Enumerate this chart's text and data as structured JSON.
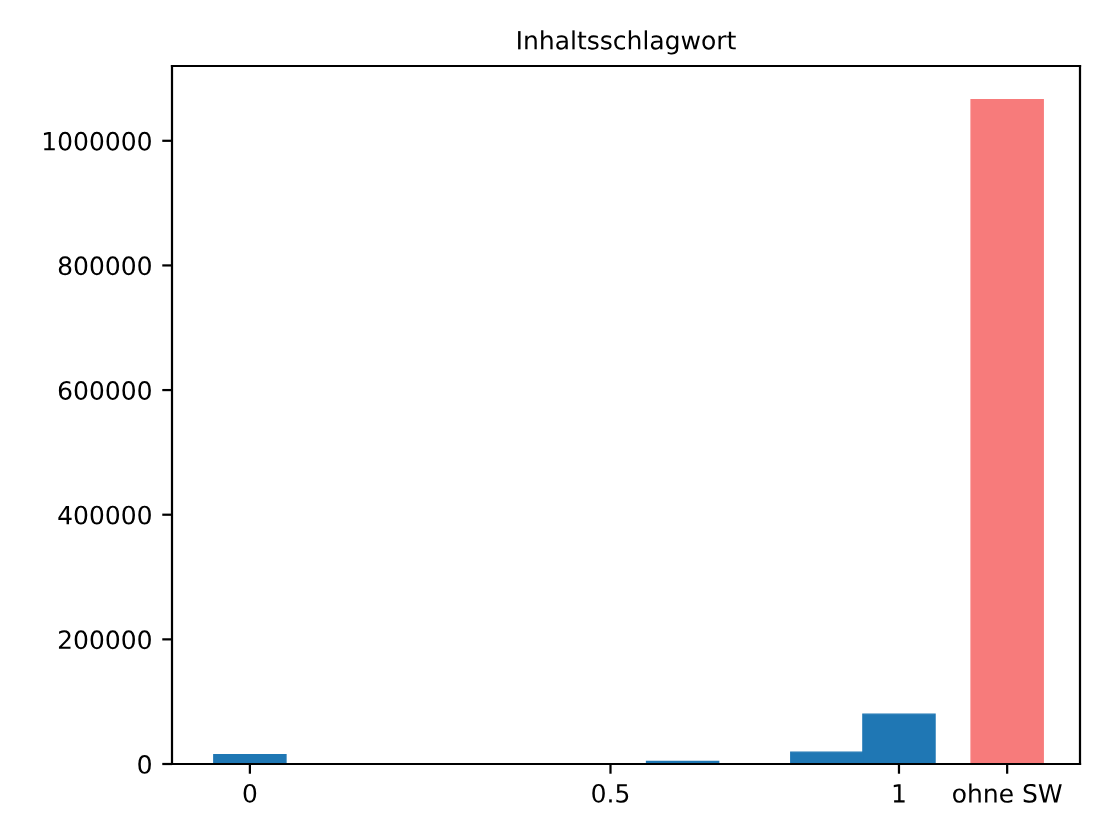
{
  "chart_data": {
    "type": "bar",
    "title": "Inhaltsschlagwort",
    "series": [
      {
        "color": "#1f77b4",
        "x": [
          0,
          0.6,
          0.8,
          0.9
        ],
        "values": [
          15000,
          4000,
          19000,
          80000
        ]
      },
      {
        "color": "#f77b7b",
        "x": [
          1.05
        ],
        "values": [
          1066000
        ]
      }
    ],
    "xlim": [
      -0.108,
      1.151
    ],
    "xticks": [
      0,
      0.5,
      {
        "value": 0.9,
        "label": "1"
      },
      {
        "value": 1.05,
        "label": "ohne SW"
      }
    ],
    "ylim": [
      0,
      1120000
    ],
    "yticks": [
      0,
      200000,
      400000,
      600000,
      800000,
      1000000
    ],
    "grid": false
  }
}
